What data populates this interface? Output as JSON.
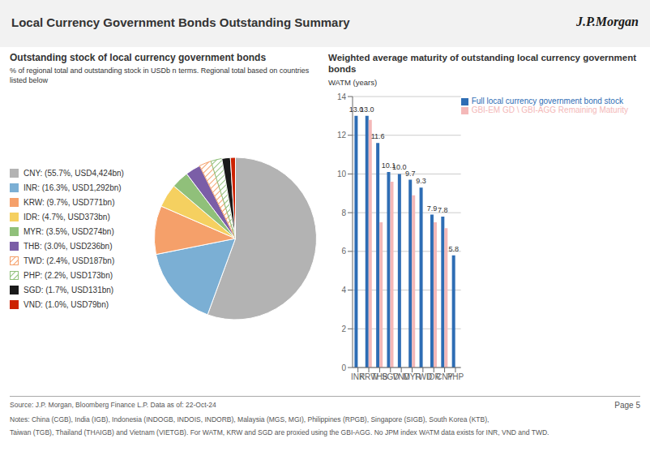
{
  "title": "Local Currency Government Bonds Outstanding Summary",
  "annotations": [
    "J.P.Morgan",
    "Source: J.P. Morgan, Bloomberg Finance L.P.  Data as of: 22-Oct-24",
    "Notes: China (CGB), India (IGB), Indonesia (INDOGB, INDOIS, INDORB), Malaysia (MGS, MGI), Philippines (RPGB), Singapore (SIGB), South Korea (KTB),",
    "Taiwan (TGB), Thailand (THAIGB) and Vietnam (VIETGB). For WATM, KRW and SGD are proxied using the GBI-AGG. No JPM index WATM data exists for INR, VND and TWD.",
    "Page 5"
  ],
  "chart_data": [
    {
      "type": "pie",
      "title": "Outstanding stock of local currency government bonds",
      "subtitle": "% of regional total and outstanding stock in USDb n terms. Regional total based on countries listed below",
      "categories": [
        "CNY: (55.7%, USD4,424bn)",
        "INR: (16.3%, USD1,292bn)",
        "KRW: (9.7%, USD771bn)",
        "IDR: (4.7%, USD373bn)",
        "MYR: (3.5%, USD274bn)",
        "THB: (3.0%, USD236bn)",
        "TWD: (2.4%, USD187bn)",
        "PHP: (2.2%, USD173bn)",
        "SGD: (1.7%, USD131bn)",
        "VND: (1.0%, USD79bn)"
      ],
      "values": [
        55.7,
        16.3,
        9.7,
        4.7,
        3.5,
        3.0,
        2.4,
        2.2,
        1.7,
        1.0
      ],
      "colors": [
        "#b3b3b3",
        "#7bafd4",
        "#f5a06a",
        "#f5d060",
        "#90c07a",
        "#7b5ea7",
        "#f5a06a",
        "#90c07a",
        "#1a1a1a",
        "#cc2200"
      ],
      "legend": "left"
    },
    {
      "type": "bar",
      "title": "Weighted average maturity of outstanding local currency government bonds",
      "ylabel": "WATM (years)",
      "categories": [
        "INR",
        "KRW",
        "THB",
        "SGD",
        "VND",
        "MYR",
        "TWD",
        "IDR",
        "CNY",
        "PHP"
      ],
      "series": [
        {
          "name": "Full local currency government bond stock",
          "color": "#2e6db4",
          "values": [
            13.0,
            13.0,
            11.6,
            10.1,
            10.0,
            9.7,
            9.3,
            7.9,
            7.8,
            5.8
          ],
          "data_labels": true,
          "value_labels": [
            "13.0",
            "13.0",
            "11.6",
            "10.1",
            "10.0",
            "9.7",
            "9.3",
            "7.9",
            "7.8",
            "5.8"
          ]
        },
        {
          "name": "GBI-EM GD \\ GBI-AGG Remaining Maturity",
          "color": "#f4b8b8",
          "values": [
            null,
            12.8,
            7.5,
            9.6,
            null,
            8.9,
            null,
            7.5,
            7.2,
            null
          ]
        }
      ],
      "ylim": [
        0,
        14
      ],
      "yticks": [
        0,
        2,
        4,
        6,
        8,
        10,
        12,
        14
      ],
      "grid": true,
      "legend": "upper right"
    }
  ]
}
